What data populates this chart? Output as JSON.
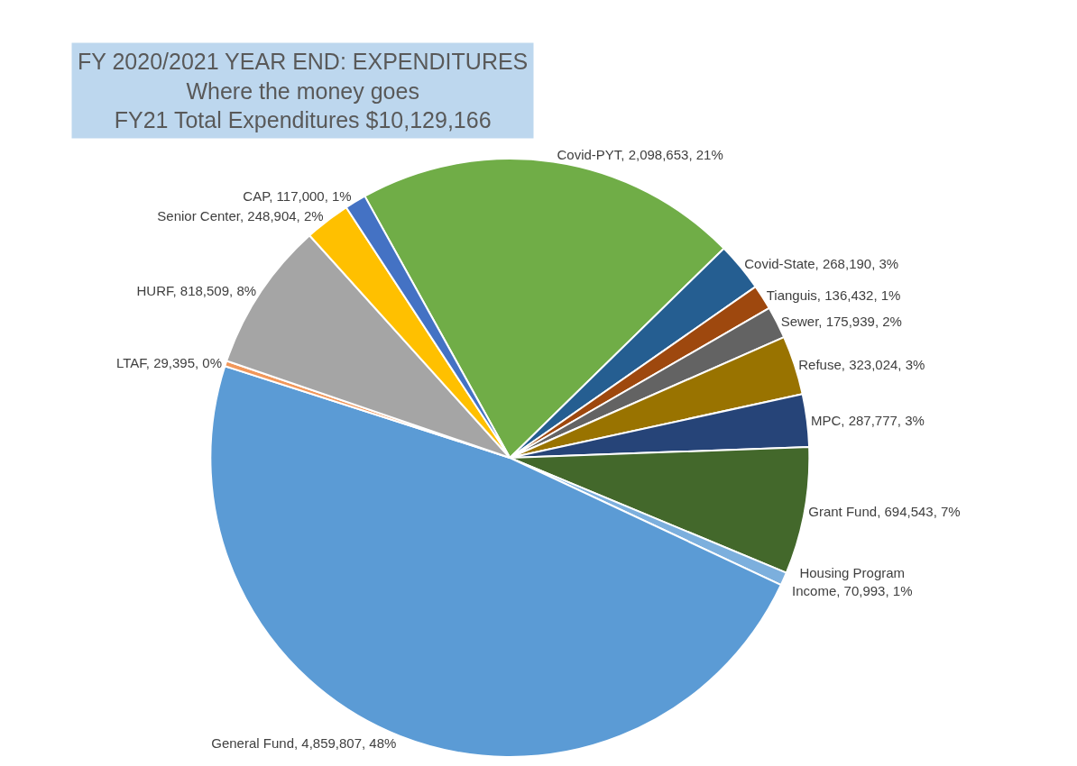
{
  "chart_data": {
    "type": "pie",
    "title": "FY 2020/2021 YEAR END: EXPENDITURES",
    "subtitle": "Where the money goes",
    "annotations": [
      "FY21 Total Expenditures $10,129,166"
    ],
    "categories": [
      "Covid-PYT",
      "Covid-State",
      "Tianguis",
      "Sewer",
      "Refuse",
      "MPC",
      "Grant Fund",
      "Housing Program Income",
      "General Fund",
      "LTAF",
      "HURF",
      "Senior Center",
      "CAP"
    ],
    "values": [
      2098653,
      268190,
      136432,
      175939,
      323024,
      287777,
      694543,
      70993,
      4859807,
      29395,
      818509,
      248904,
      117000
    ],
    "value_labels": [
      "2,098,653, 21%",
      "268,190, 3%",
      "136,432, 1%",
      "175,939, 2%",
      "323,024, 3%",
      "287,777, 3%",
      "694,543, 7%",
      "70,993, 1%",
      "4,859,807, 48%",
      "29,395, 0%",
      "818,509, 8%",
      "248,904, 2%",
      "117,000, 1%"
    ],
    "colors": [
      "#70ad47",
      "#255e91",
      "#9e480e",
      "#636363",
      "#997300",
      "#264478",
      "#43682b",
      "#7cafdd",
      "#5b9bd5",
      "#f1975a",
      "#a5a5a5",
      "#ffc000",
      "#4472c4"
    ],
    "legend": false
  }
}
